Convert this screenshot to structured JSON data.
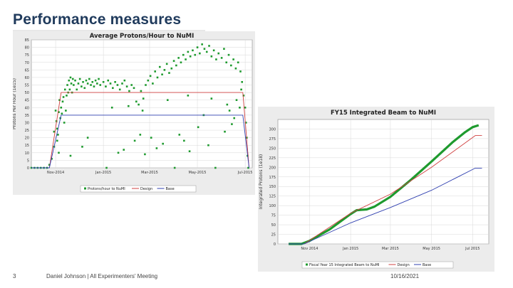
{
  "slide": {
    "title": "Performance measures",
    "page_number": "3",
    "footer_text": "Daniel Johnson | All Experimenters' Meeting",
    "date": "10/16/2021"
  },
  "colors": {
    "title": "#1f3a5c",
    "points": "#1e9a2e",
    "design": "#d04040",
    "base": "#3040b0",
    "plot_bg": "#ffffff",
    "grid": "#d8d8d8",
    "panel_bg": "#ececec"
  },
  "chart_data": [
    {
      "type": "scatter",
      "title": "Average Protons/Hour to NuMI",
      "ylabel": "Protons Per Hour (1e15)",
      "xlabel": "",
      "ylim": [
        0,
        85
      ],
      "yticks": [
        0,
        5,
        10,
        15,
        20,
        25,
        30,
        35,
        40,
        45,
        50,
        55,
        60,
        65,
        70,
        75,
        80,
        85
      ],
      "xlim": [
        "2014-10-01",
        "2015-07-10"
      ],
      "xticks": [
        {
          "date": "2014-11-01",
          "label": "Nov-2014"
        },
        {
          "date": "2015-01-01",
          "label": "Jan-2015"
        },
        {
          "date": "2015-03-01",
          "label": "Mar-2015"
        },
        {
          "date": "2015-05-01",
          "label": "May-2015"
        },
        {
          "date": "2015-07-01",
          "label": "Jul-2015"
        }
      ],
      "grid": true,
      "legend_position": "bottom",
      "legend": [
        "Protons/hour to NuMI",
        "Design",
        "Base"
      ],
      "series": [
        {
          "name": "Protons/hour to NuMI",
          "style": "points",
          "points": [
            [
              "2014-10-01",
              0
            ],
            [
              "2014-10-05",
              0
            ],
            [
              "2014-10-09",
              0
            ],
            [
              "2014-10-13",
              0
            ],
            [
              "2014-10-17",
              0
            ],
            [
              "2014-10-21",
              0
            ],
            [
              "2014-10-24",
              2
            ],
            [
              "2014-10-27",
              6
            ],
            [
              "2014-10-30",
              14
            ],
            [
              "2014-10-30",
              24
            ],
            [
              "2014-11-01",
              38
            ],
            [
              "2014-11-02",
              31
            ],
            [
              "2014-11-03",
              26
            ],
            [
              "2014-11-04",
              22
            ],
            [
              "2014-11-05",
              37
            ],
            [
              "2014-11-06",
              45
            ],
            [
              "2014-11-07",
              33
            ],
            [
              "2014-11-08",
              40
            ],
            [
              "2014-11-09",
              36
            ],
            [
              "2014-11-10",
              44
            ],
            [
              "2014-11-11",
              47
            ],
            [
              "2014-11-12",
              30
            ],
            [
              "2014-11-13",
              52
            ],
            [
              "2014-11-14",
              38
            ],
            [
              "2014-11-15",
              48
            ],
            [
              "2014-11-16",
              55
            ],
            [
              "2014-11-17",
              50
            ],
            [
              "2014-11-18",
              58
            ],
            [
              "2014-11-19",
              52
            ],
            [
              "2014-11-20",
              60
            ],
            [
              "2014-11-21",
              56
            ],
            [
              "2014-11-22",
              50
            ],
            [
              "2014-11-23",
              59
            ],
            [
              "2014-11-24",
              55
            ],
            [
              "2014-11-26",
              58
            ],
            [
              "2014-11-28",
              52
            ],
            [
              "2014-11-30",
              56
            ],
            [
              "2014-12-02",
              59
            ],
            [
              "2014-12-04",
              54
            ],
            [
              "2014-12-06",
              57
            ],
            [
              "2014-12-08",
              53
            ],
            [
              "2014-12-10",
              58
            ],
            [
              "2014-12-12",
              56
            ],
            [
              "2014-12-14",
              59
            ],
            [
              "2014-12-16",
              55
            ],
            [
              "2014-12-18",
              57
            ],
            [
              "2014-12-20",
              54
            ],
            [
              "2014-12-22",
              58
            ],
            [
              "2014-12-24",
              56
            ],
            [
              "2014-12-26",
              59
            ],
            [
              "2014-12-28",
              55
            ],
            [
              "2015-01-01",
              57
            ],
            [
              "2015-01-04",
              54
            ],
            [
              "2015-01-07",
              58
            ],
            [
              "2015-01-10",
              56
            ],
            [
              "2015-01-13",
              53
            ],
            [
              "2015-01-16",
              57
            ],
            [
              "2015-01-19",
              55
            ],
            [
              "2015-01-22",
              52
            ],
            [
              "2015-01-25",
              56
            ],
            [
              "2015-01-28",
              58
            ],
            [
              "2015-01-31",
              54
            ],
            [
              "2015-02-03",
              51
            ],
            [
              "2015-02-06",
              55
            ],
            [
              "2015-02-09",
              53
            ],
            [
              "2015-02-12",
              44
            ],
            [
              "2015-02-15",
              42
            ],
            [
              "2015-02-18",
              51
            ],
            [
              "2015-02-21",
              46
            ],
            [
              "2015-02-24",
              55
            ],
            [
              "2015-02-27",
              58
            ],
            [
              "2015-03-02",
              61
            ],
            [
              "2015-03-05",
              56
            ],
            [
              "2015-03-08",
              64
            ],
            [
              "2015-03-11",
              60
            ],
            [
              "2015-03-14",
              67
            ],
            [
              "2015-03-17",
              62
            ],
            [
              "2015-03-20",
              65
            ],
            [
              "2015-03-23",
              69
            ],
            [
              "2015-03-26",
              63
            ],
            [
              "2015-03-29",
              66
            ],
            [
              "2015-04-01",
              71
            ],
            [
              "2015-04-04",
              68
            ],
            [
              "2015-04-07",
              73
            ],
            [
              "2015-04-10",
              70
            ],
            [
              "2015-04-13",
              75
            ],
            [
              "2015-04-16",
              72
            ],
            [
              "2015-04-19",
              77
            ],
            [
              "2015-04-22",
              74
            ],
            [
              "2015-04-25",
              78
            ],
            [
              "2015-04-28",
              75
            ],
            [
              "2015-05-01",
              80
            ],
            [
              "2015-05-04",
              76
            ],
            [
              "2015-05-07",
              82
            ],
            [
              "2015-05-10",
              79
            ],
            [
              "2015-05-13",
              77
            ],
            [
              "2015-05-16",
              81
            ],
            [
              "2015-05-19",
              74
            ],
            [
              "2015-05-22",
              78
            ],
            [
              "2015-05-25",
              72
            ],
            [
              "2015-05-28",
              76
            ],
            [
              "2015-06-01",
              73
            ],
            [
              "2015-06-04",
              79
            ],
            [
              "2015-06-07",
              70
            ],
            [
              "2015-06-10",
              75
            ],
            [
              "2015-06-13",
              68
            ],
            [
              "2015-06-16",
              72
            ],
            [
              "2015-06-19",
              66
            ],
            [
              "2015-06-22",
              70
            ],
            [
              "2015-06-25",
              64
            ],
            [
              "2015-06-27",
              57
            ],
            [
              "2015-06-29",
              48
            ],
            [
              "2015-07-01",
              40
            ],
            [
              "2015-07-02",
              30
            ],
            [
              "2015-07-03",
              20
            ],
            [
              "2015-07-04",
              8
            ],
            [
              "2015-07-05",
              0
            ],
            [
              "2014-11-03",
              18
            ],
            [
              "2014-11-05",
              10
            ],
            [
              "2014-11-20",
              8
            ],
            [
              "2014-12-05",
              14
            ],
            [
              "2014-12-12",
              20
            ],
            [
              "2015-01-05",
              0
            ],
            [
              "2015-01-20",
              10
            ],
            [
              "2015-01-27",
              12
            ],
            [
              "2015-02-10",
              18
            ],
            [
              "2015-02-17",
              22
            ],
            [
              "2015-02-23",
              9
            ],
            [
              "2015-03-03",
              20
            ],
            [
              "2015-03-10",
              13
            ],
            [
              "2015-03-18",
              16
            ],
            [
              "2015-04-02",
              0
            ],
            [
              "2015-04-08",
              22
            ],
            [
              "2015-04-14",
              18
            ],
            [
              "2015-04-21",
              11
            ],
            [
              "2015-05-02",
              27
            ],
            [
              "2015-05-09",
              35
            ],
            [
              "2015-05-15",
              15
            ],
            [
              "2015-05-24",
              0
            ],
            [
              "2015-06-05",
              24
            ],
            [
              "2015-06-11",
              38
            ],
            [
              "2015-06-17",
              33
            ],
            [
              "2015-06-20",
              45
            ],
            [
              "2015-06-24",
              40
            ],
            [
              "2015-06-08",
              42
            ],
            [
              "2015-06-14",
              29
            ],
            [
              "2015-06-26",
              52
            ],
            [
              "2015-01-12",
              40
            ],
            [
              "2015-02-02",
              41
            ],
            [
              "2015-02-20",
              38
            ],
            [
              "2015-03-24",
              45
            ],
            [
              "2015-04-19",
              48
            ],
            [
              "2015-05-19",
              46
            ]
          ]
        },
        {
          "name": "Design",
          "style": "line",
          "points": [
            [
              "2014-10-01",
              0
            ],
            [
              "2014-10-24",
              0
            ],
            [
              "2014-11-08",
              50
            ],
            [
              "2015-06-28",
              50
            ],
            [
              "2015-07-06",
              0
            ]
          ]
        },
        {
          "name": "Base",
          "style": "line",
          "points": [
            [
              "2014-10-01",
              0
            ],
            [
              "2014-10-24",
              0
            ],
            [
              "2014-11-08",
              35
            ],
            [
              "2015-06-28",
              35
            ],
            [
              "2015-07-06",
              0
            ]
          ]
        }
      ]
    },
    {
      "type": "line",
      "title": "FY15 Integrated Beam to NuMI",
      "ylabel": "Integrated Protons (1e18)",
      "xlabel": "",
      "ylim": [
        0,
        325
      ],
      "yticks": [
        0,
        25,
        50,
        75,
        100,
        125,
        150,
        175,
        200,
        225,
        250,
        275,
        300
      ],
      "xlim": [
        "2014-09-15",
        "2015-07-25"
      ],
      "xticks": [
        {
          "date": "2014-11-01",
          "label": "Nov 2014"
        },
        {
          "date": "2015-01-01",
          "label": "Jan 2015"
        },
        {
          "date": "2015-03-01",
          "label": "Mar 2015"
        },
        {
          "date": "2015-05-01",
          "label": "May 2015"
        },
        {
          "date": "2015-07-01",
          "label": "Jul 2015"
        }
      ],
      "grid": true,
      "legend_position": "bottom",
      "legend": [
        "Fiscal Year 15 Integrated Beam to NuMI",
        "Design",
        "Base"
      ],
      "series": [
        {
          "name": "Fiscal Year 15 Integrated Beam to NuMI",
          "style": "thick",
          "points": [
            [
              "2014-10-01",
              0
            ],
            [
              "2014-10-20",
              0
            ],
            [
              "2014-11-01",
              8
            ],
            [
              "2014-12-01",
              38
            ],
            [
              "2015-01-01",
              78
            ],
            [
              "2015-01-10",
              88
            ],
            [
              "2015-01-25",
              90
            ],
            [
              "2015-02-05",
              97
            ],
            [
              "2015-03-01",
              123
            ],
            [
              "2015-04-01",
              168
            ],
            [
              "2015-05-01",
              215
            ],
            [
              "2015-06-01",
              265
            ],
            [
              "2015-06-20",
              292
            ],
            [
              "2015-07-01",
              305
            ],
            [
              "2015-07-10",
              310
            ]
          ]
        },
        {
          "name": "Design",
          "style": "line",
          "points": [
            [
              "2014-10-01",
              0
            ],
            [
              "2014-10-24",
              0
            ],
            [
              "2015-01-01",
              80
            ],
            [
              "2015-03-01",
              130
            ],
            [
              "2015-05-01",
              200
            ],
            [
              "2015-07-05",
              283
            ],
            [
              "2015-07-15",
              283
            ]
          ]
        },
        {
          "name": "Base",
          "style": "line",
          "points": [
            [
              "2014-10-01",
              0
            ],
            [
              "2014-10-24",
              0
            ],
            [
              "2015-01-01",
              55
            ],
            [
              "2015-03-01",
              95
            ],
            [
              "2015-05-01",
              140
            ],
            [
              "2015-07-05",
              198
            ],
            [
              "2015-07-15",
              198
            ]
          ]
        }
      ]
    }
  ]
}
